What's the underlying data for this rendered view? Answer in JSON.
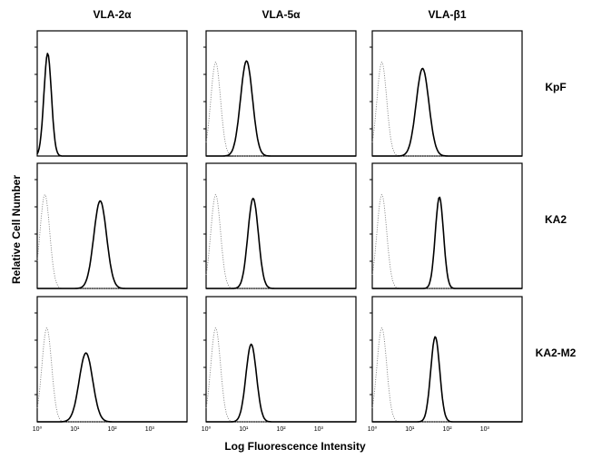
{
  "chart_data": {
    "type": "line",
    "x_scale": "log",
    "xlim": [
      1,
      10000
    ],
    "x_tick_labels": [
      "10⁰",
      "10¹",
      "10²",
      "10³"
    ],
    "xlabel": "Log Fluorescence Intensity",
    "ylabel": "Relative Cell Number",
    "columns": [
      "VLA-2α",
      "VLA-5α",
      "VLA-β1"
    ],
    "rows": [
      "KpF",
      "KA2",
      "KA2-M2"
    ],
    "panels": [
      {
        "row": "KpF",
        "column": "VLA-2α",
        "control_peak": null,
        "stain_peak": 1.9,
        "stain_height": 0.82,
        "stain_width": 0.1
      },
      {
        "row": "KpF",
        "column": "VLA-5α",
        "control_peak": 1.8,
        "stain_peak": 12,
        "stain_height": 0.76,
        "stain_width": 0.16
      },
      {
        "row": "KpF",
        "column": "VLA-β1",
        "control_peak": 1.8,
        "stain_peak": 22,
        "stain_height": 0.7,
        "stain_width": 0.17
      },
      {
        "row": "KA2",
        "column": "VLA-2α",
        "control_peak": 1.6,
        "stain_peak": 48,
        "stain_height": 0.7,
        "stain_width": 0.17
      },
      {
        "row": "KA2",
        "column": "VLA-5α",
        "control_peak": 1.8,
        "stain_peak": 18,
        "stain_height": 0.72,
        "stain_width": 0.14
      },
      {
        "row": "KA2",
        "column": "VLA-β1",
        "control_peak": 1.8,
        "stain_peak": 62,
        "stain_height": 0.73,
        "stain_width": 0.11
      },
      {
        "row": "KA2-M2",
        "column": "VLA-2α",
        "control_peak": 1.8,
        "stain_peak": 20,
        "stain_height": 0.55,
        "stain_width": 0.18
      },
      {
        "row": "KA2-M2",
        "column": "VLA-5α",
        "control_peak": 1.8,
        "stain_peak": 16,
        "stain_height": 0.62,
        "stain_width": 0.14
      },
      {
        "row": "KA2-M2",
        "column": "VLA-β1",
        "control_peak": 1.8,
        "stain_peak": 48,
        "stain_height": 0.68,
        "stain_width": 0.12
      }
    ],
    "control_height": 0.75,
    "control_width": 0.13,
    "legend": "none",
    "grid": false
  }
}
